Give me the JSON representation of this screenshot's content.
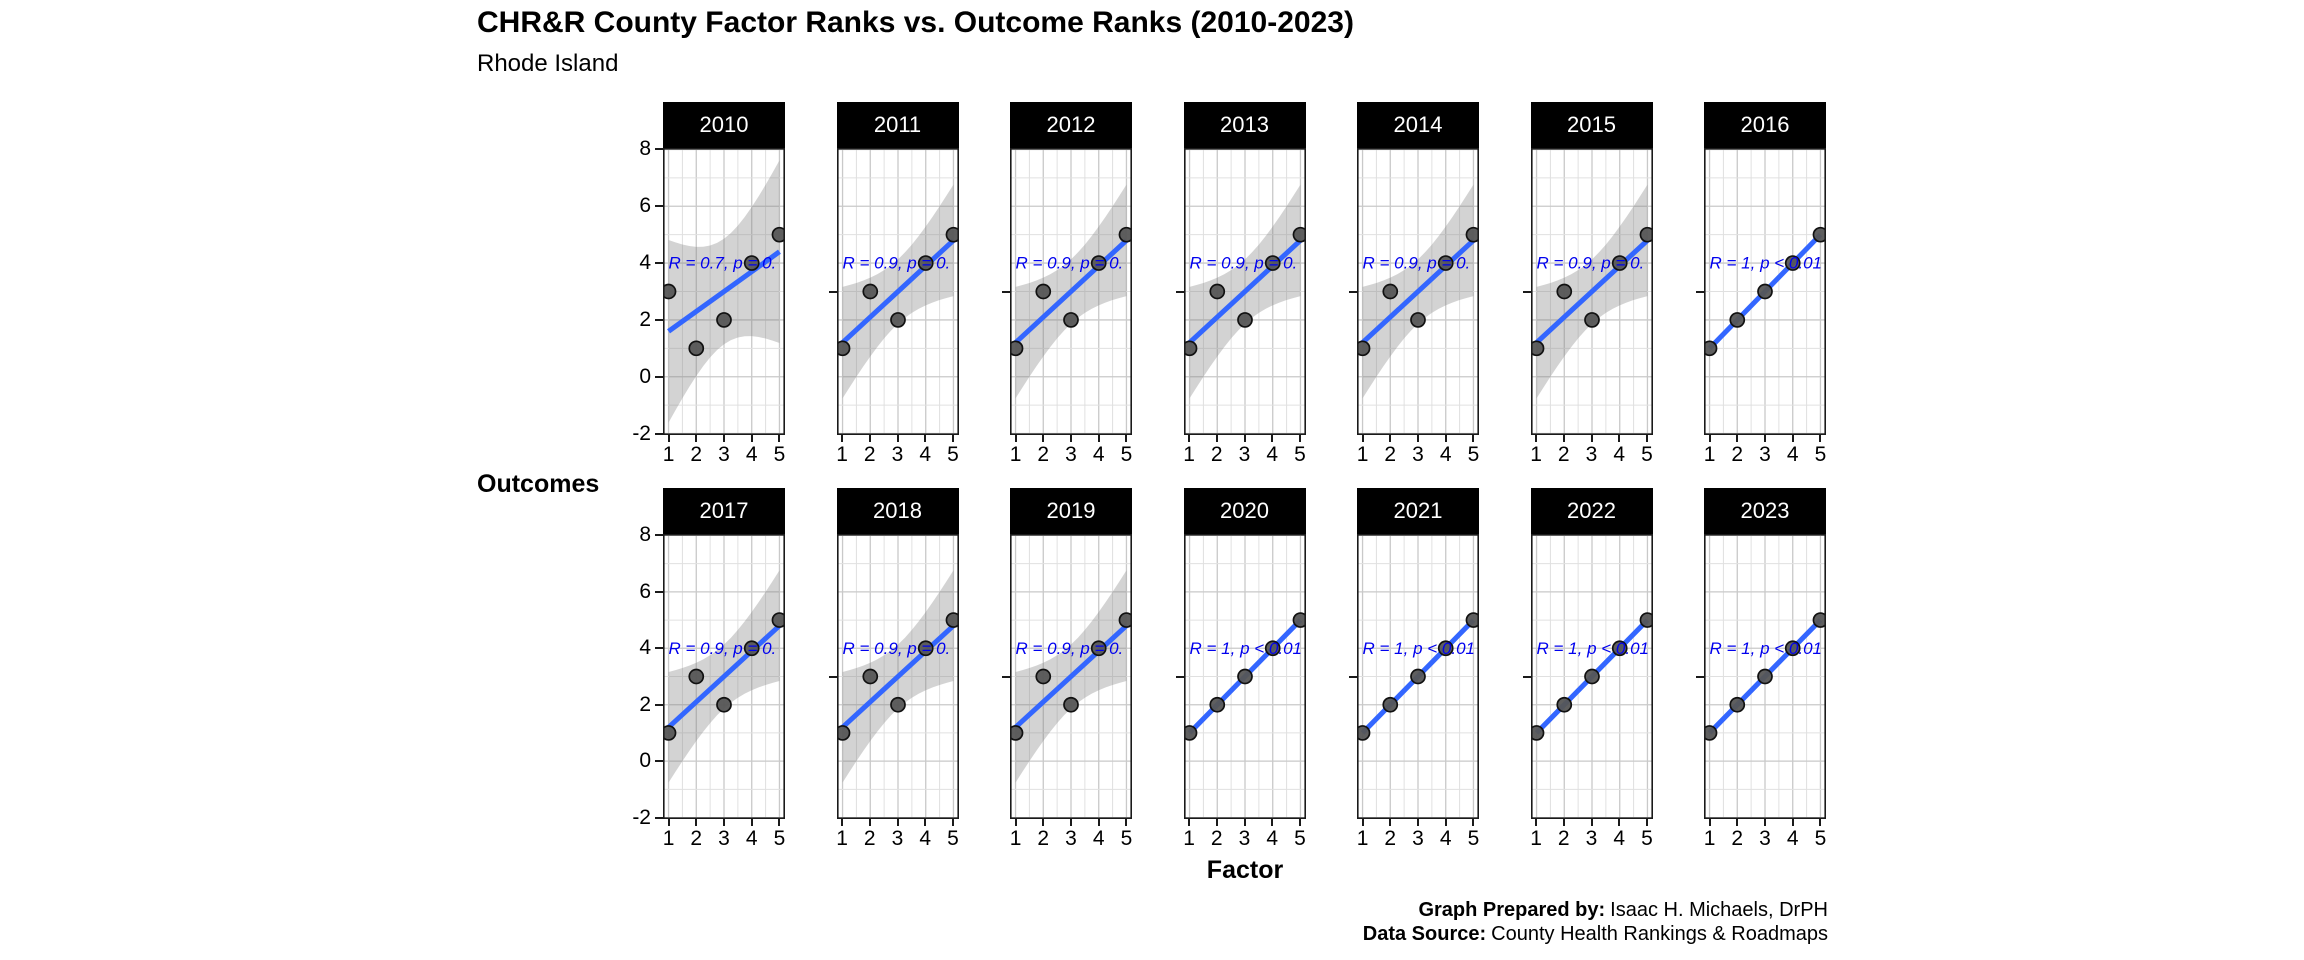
{
  "title": "CHR&R County Factor Ranks vs. Outcome Ranks (2010-2023)",
  "subtitle": "Rhode Island",
  "axes": {
    "x_title": "Factor",
    "y_title": "Outcomes",
    "x_ticks": [
      "1",
      "2",
      "3",
      "4",
      "5"
    ],
    "y_ticks": [
      "8",
      "6",
      "4",
      "2",
      "0",
      "-2"
    ]
  },
  "caption": {
    "prepared_by_label": "Graph Prepared by:",
    "prepared_by_value": "Isaac H. Michaels, DrPH",
    "data_source_label": "Data Source:",
    "data_source_value": "County Health Rankings & Roadmaps"
  },
  "colors": {
    "strip_bg": "#000000",
    "strip_text": "#ffffff",
    "panel_bg": "#ffffff",
    "panel_border": "#1a1a1a",
    "grid_major": "#c9c9c9",
    "grid_minor": "#e0e0e0",
    "band": "rgba(128,128,128,0.35)",
    "regression_line": "#3366FF",
    "point_fill": "#565656",
    "point_stroke": "#111111",
    "annotation_text": "#0000EE"
  },
  "chart_data": {
    "type": "scatter",
    "title": "CHR&R County Factor Ranks vs. Outcome Ranks (2010-2023)",
    "subtitle": "Rhode Island",
    "xlabel": "Factor",
    "ylabel": "Outcomes",
    "x_ticks": [
      1,
      2,
      3,
      4,
      5
    ],
    "y_ticks": [
      8,
      6,
      4,
      2,
      0,
      -2
    ],
    "x_range_shown": [
      0.8,
      5.2
    ],
    "y_range_shown": [
      -2.05,
      8.05
    ],
    "grid": true,
    "legend": false,
    "facet_rows": 2,
    "facet_cols": 7,
    "smoother": "linear regression with 95% confidence band",
    "facets": [
      {
        "year": "2010",
        "points": [
          [
            1,
            3
          ],
          [
            2,
            1
          ],
          [
            3,
            2
          ],
          [
            4,
            4
          ],
          [
            5,
            5
          ]
        ],
        "annotation": "R = 0.7, p = 0."
      },
      {
        "year": "2011",
        "points": [
          [
            1,
            1
          ],
          [
            2,
            3
          ],
          [
            3,
            2
          ],
          [
            4,
            4
          ],
          [
            5,
            5
          ]
        ],
        "annotation": "R = 0.9, p = 0."
      },
      {
        "year": "2012",
        "points": [
          [
            1,
            1
          ],
          [
            2,
            3
          ],
          [
            3,
            2
          ],
          [
            4,
            4
          ],
          [
            5,
            5
          ]
        ],
        "annotation": "R = 0.9, p = 0."
      },
      {
        "year": "2013",
        "points": [
          [
            1,
            1
          ],
          [
            2,
            3
          ],
          [
            3,
            2
          ],
          [
            4,
            4
          ],
          [
            5,
            5
          ]
        ],
        "annotation": "R = 0.9, p = 0."
      },
      {
        "year": "2014",
        "points": [
          [
            1,
            1
          ],
          [
            2,
            3
          ],
          [
            3,
            2
          ],
          [
            4,
            4
          ],
          [
            5,
            5
          ]
        ],
        "annotation": "R = 0.9, p = 0."
      },
      {
        "year": "2015",
        "points": [
          [
            1,
            1
          ],
          [
            2,
            3
          ],
          [
            3,
            2
          ],
          [
            4,
            4
          ],
          [
            5,
            5
          ]
        ],
        "annotation": "R = 0.9, p = 0."
      },
      {
        "year": "2016",
        "points": [
          [
            1,
            1
          ],
          [
            2,
            2
          ],
          [
            3,
            3
          ],
          [
            4,
            4
          ],
          [
            5,
            5
          ]
        ],
        "annotation": "R = 1, p < 0.01"
      },
      {
        "year": "2017",
        "points": [
          [
            1,
            1
          ],
          [
            2,
            3
          ],
          [
            3,
            2
          ],
          [
            4,
            4
          ],
          [
            5,
            5
          ]
        ],
        "annotation": "R = 0.9, p = 0."
      },
      {
        "year": "2018",
        "points": [
          [
            1,
            1
          ],
          [
            2,
            3
          ],
          [
            3,
            2
          ],
          [
            4,
            4
          ],
          [
            5,
            5
          ]
        ],
        "annotation": "R = 0.9, p = 0."
      },
      {
        "year": "2019",
        "points": [
          [
            1,
            1
          ],
          [
            2,
            3
          ],
          [
            3,
            2
          ],
          [
            4,
            4
          ],
          [
            5,
            5
          ]
        ],
        "annotation": "R = 0.9, p = 0."
      },
      {
        "year": "2020",
        "points": [
          [
            1,
            1
          ],
          [
            2,
            2
          ],
          [
            3,
            3
          ],
          [
            4,
            4
          ],
          [
            5,
            5
          ]
        ],
        "annotation": "R = 1, p < 0.01"
      },
      {
        "year": "2021",
        "points": [
          [
            1,
            1
          ],
          [
            2,
            2
          ],
          [
            3,
            3
          ],
          [
            4,
            4
          ],
          [
            5,
            5
          ]
        ],
        "annotation": "R = 1, p < 0.01"
      },
      {
        "year": "2022",
        "points": [
          [
            1,
            1
          ],
          [
            2,
            2
          ],
          [
            3,
            3
          ],
          [
            4,
            4
          ],
          [
            5,
            5
          ]
        ],
        "annotation": "R = 1, p < 0.01"
      },
      {
        "year": "2023",
        "points": [
          [
            1,
            1
          ],
          [
            2,
            2
          ],
          [
            3,
            3
          ],
          [
            4,
            4
          ],
          [
            5,
            5
          ]
        ],
        "annotation": "R = 1, p < 0.01"
      }
    ]
  }
}
